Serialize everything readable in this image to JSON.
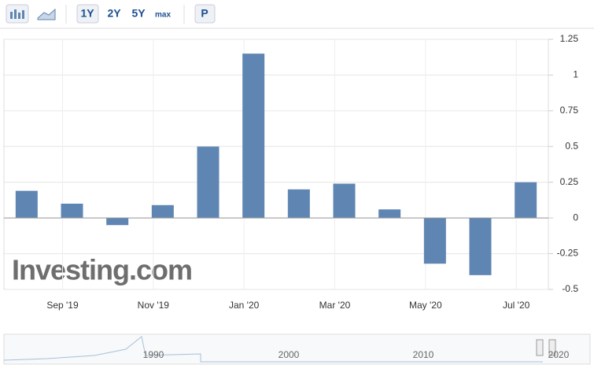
{
  "toolbar": {
    "buttons": [
      "1Y",
      "2Y",
      "5Y",
      "max",
      "P"
    ]
  },
  "chart_data": {
    "type": "bar",
    "categories": [
      null,
      "Sep '19",
      null,
      "Nov '19",
      null,
      "Jan '20",
      null,
      "Mar '20",
      null,
      "May '20",
      null,
      "Jul '20"
    ],
    "values": [
      0.19,
      0.1,
      -0.05,
      0.09,
      0.5,
      1.15,
      0.2,
      0.24,
      0.06,
      -0.32,
      -0.4,
      0.25
    ],
    "color": "#5f86b3",
    "ylim": [
      -0.5,
      1.25
    ],
    "yticks": [
      -0.5,
      -0.25,
      0,
      0.25,
      0.5,
      0.75,
      1,
      1.25
    ],
    "grid": true,
    "watermark": "Investing.com"
  },
  "navigator": {
    "labels": [
      "1990",
      "2000",
      "2010",
      "2020"
    ]
  }
}
